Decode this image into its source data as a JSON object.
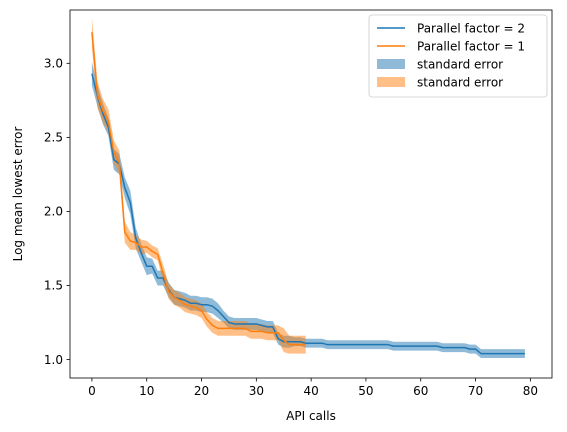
{
  "chart_data": {
    "type": "line",
    "title": "",
    "xlabel": "API calls",
    "ylabel": "Log mean lowest error",
    "xlim": [
      -4,
      83.95
    ],
    "ylim": [
      0.875,
      3.36
    ],
    "xticks": [
      0,
      10,
      20,
      30,
      40,
      50,
      60,
      70,
      80
    ],
    "yticks": [
      1.0,
      1.5,
      2.0,
      2.5,
      3.0
    ],
    "grid": false,
    "legend_position": "top-right",
    "series": [
      {
        "name": "Parallel factor = 2",
        "color": "#1f77b4",
        "band_label": "standard error",
        "band_color": "#1f77b4",
        "x": [
          0,
          1,
          2,
          3,
          4,
          5,
          6,
          7,
          8,
          9,
          10,
          11,
          12,
          13,
          14,
          15,
          16,
          17,
          18,
          19,
          20,
          21,
          22,
          23,
          24,
          25,
          26,
          27,
          28,
          29,
          30,
          31,
          32,
          33,
          34,
          35,
          36,
          37,
          38,
          39,
          40,
          41,
          42,
          43,
          44,
          45,
          46,
          47,
          48,
          49,
          50,
          51,
          52,
          53,
          54,
          55,
          56,
          57,
          58,
          59,
          60,
          61,
          62,
          63,
          64,
          65,
          66,
          67,
          68,
          69,
          70,
          71,
          72,
          73,
          74,
          75,
          76,
          77,
          78,
          79
        ],
        "y": [
          2.93,
          2.78,
          2.66,
          2.57,
          2.35,
          2.32,
          2.16,
          2.06,
          1.82,
          1.72,
          1.63,
          1.63,
          1.55,
          1.55,
          1.47,
          1.42,
          1.41,
          1.4,
          1.38,
          1.38,
          1.37,
          1.37,
          1.36,
          1.33,
          1.29,
          1.25,
          1.24,
          1.24,
          1.24,
          1.24,
          1.24,
          1.23,
          1.22,
          1.22,
          1.14,
          1.12,
          1.12,
          1.12,
          1.12,
          1.11,
          1.11,
          1.11,
          1.11,
          1.1,
          1.1,
          1.1,
          1.1,
          1.1,
          1.1,
          1.1,
          1.1,
          1.1,
          1.1,
          1.1,
          1.1,
          1.09,
          1.09,
          1.09,
          1.09,
          1.09,
          1.09,
          1.09,
          1.09,
          1.09,
          1.08,
          1.08,
          1.08,
          1.08,
          1.08,
          1.07,
          1.07,
          1.04,
          1.04,
          1.04,
          1.04,
          1.04,
          1.04,
          1.04,
          1.04,
          1.04
        ],
        "err": [
          0.08,
          0.07,
          0.07,
          0.06,
          0.07,
          0.07,
          0.07,
          0.08,
          0.07,
          0.06,
          0.06,
          0.05,
          0.05,
          0.05,
          0.05,
          0.05,
          0.05,
          0.05,
          0.05,
          0.05,
          0.05,
          0.05,
          0.05,
          0.05,
          0.04,
          0.04,
          0.04,
          0.04,
          0.04,
          0.04,
          0.04,
          0.04,
          0.04,
          0.04,
          0.04,
          0.04,
          0.04,
          0.03,
          0.03,
          0.03,
          0.03,
          0.03,
          0.03,
          0.03,
          0.03,
          0.03,
          0.03,
          0.03,
          0.03,
          0.03,
          0.03,
          0.03,
          0.03,
          0.03,
          0.03,
          0.03,
          0.03,
          0.03,
          0.03,
          0.03,
          0.03,
          0.03,
          0.03,
          0.03,
          0.03,
          0.03,
          0.03,
          0.03,
          0.03,
          0.03,
          0.03,
          0.03,
          0.03,
          0.03,
          0.03,
          0.03,
          0.03,
          0.03,
          0.03,
          0.03
        ]
      },
      {
        "name": "Parallel factor = 1",
        "color": "#ff7f0e",
        "band_label": "standard error",
        "band_color": "#ff7f0e",
        "x": [
          0,
          1,
          2,
          3,
          4,
          5,
          6,
          7,
          8,
          9,
          10,
          11,
          12,
          13,
          14,
          15,
          16,
          17,
          18,
          19,
          20,
          21,
          22,
          23,
          24,
          25,
          26,
          27,
          28,
          29,
          30,
          31,
          32,
          33,
          34,
          35,
          36,
          37,
          38,
          39
        ],
        "y": [
          3.21,
          2.79,
          2.68,
          2.61,
          2.4,
          2.33,
          1.86,
          1.8,
          1.79,
          1.76,
          1.76,
          1.73,
          1.71,
          1.58,
          1.46,
          1.42,
          1.4,
          1.37,
          1.36,
          1.35,
          1.33,
          1.27,
          1.23,
          1.21,
          1.21,
          1.21,
          1.21,
          1.21,
          1.21,
          1.19,
          1.19,
          1.19,
          1.18,
          1.18,
          1.18,
          1.13,
          1.1,
          1.1,
          1.1,
          1.1
        ],
        "err": [
          0.1,
          0.09,
          0.08,
          0.08,
          0.08,
          0.08,
          0.07,
          0.06,
          0.05,
          0.05,
          0.04,
          0.04,
          0.04,
          0.06,
          0.05,
          0.05,
          0.05,
          0.05,
          0.05,
          0.05,
          0.05,
          0.05,
          0.05,
          0.05,
          0.05,
          0.05,
          0.05,
          0.05,
          0.05,
          0.05,
          0.05,
          0.05,
          0.05,
          0.05,
          0.05,
          0.08,
          0.06,
          0.06,
          0.06,
          0.06
        ]
      }
    ]
  }
}
